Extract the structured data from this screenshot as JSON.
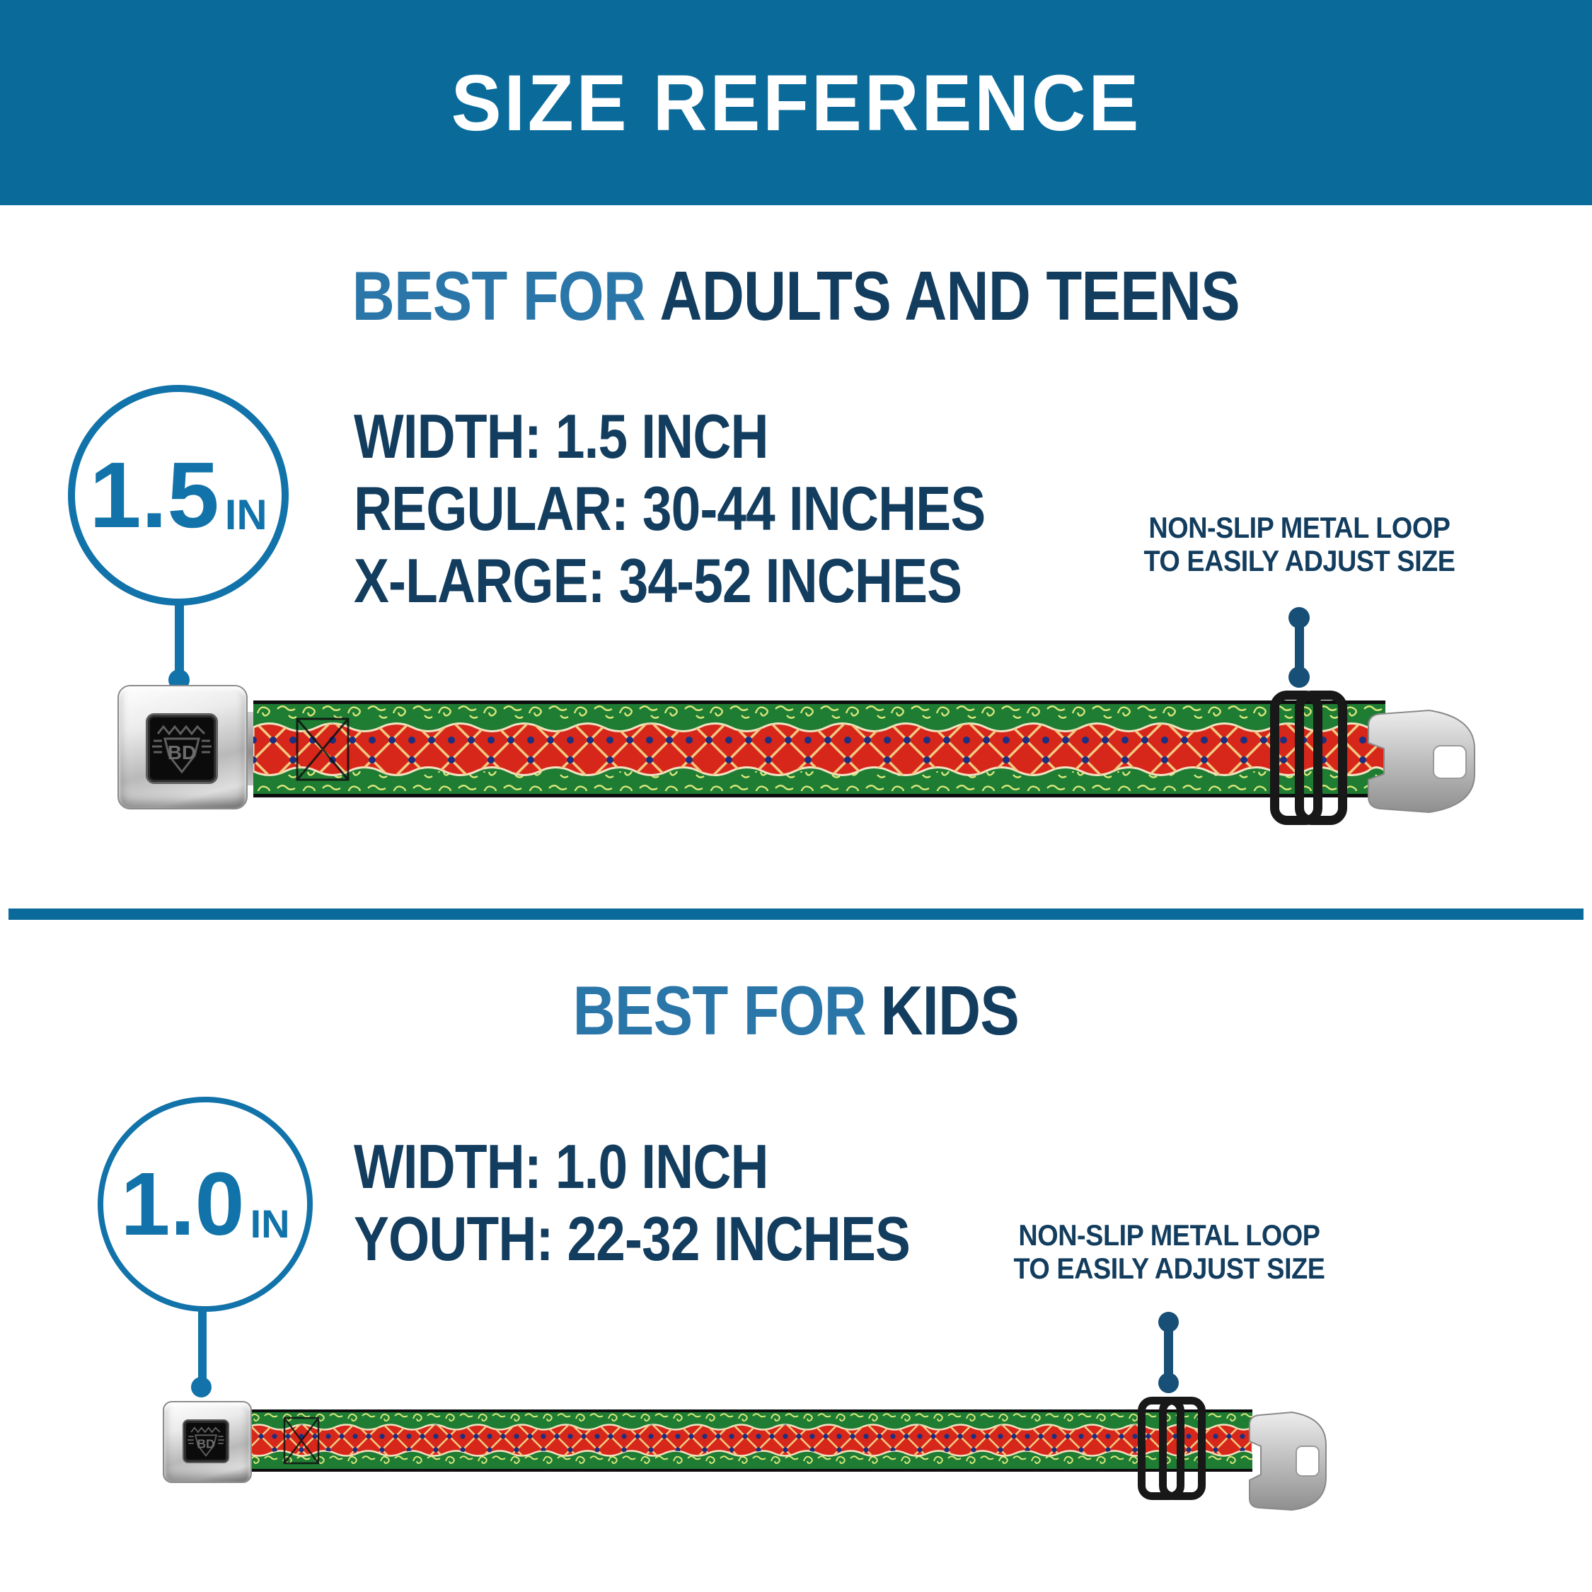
{
  "header": {
    "title": "SIZE REFERENCE"
  },
  "colors": {
    "banner": "#0a6b9b",
    "accent": "#2b76a9",
    "navy": "#133d5e",
    "badge": "#1173a9",
    "connector": "#174f77",
    "belt-green": "#1e7c33",
    "belt-red": "#d7271b",
    "lattice": "#f2ca80",
    "lattice-dot": "#1d2f7f",
    "filigree": "#d7e77a",
    "band-edge": "#f0e3c3"
  },
  "sections": [
    {
      "heading_accent": "BEST FOR",
      "heading_main": "ADULTS AND TEENS",
      "badge_value": "1.5",
      "badge_unit": "IN",
      "specs": [
        "WIDTH: 1.5 INCH",
        "REGULAR: 30-44 INCHES",
        "X-LARGE: 34-52 INCHES"
      ],
      "callout_line1": "NON-SLIP METAL LOOP",
      "callout_line2": "TO EASILY ADJUST SIZE",
      "buckle_logo": "BD"
    },
    {
      "heading_accent": "BEST FOR",
      "heading_main": "KIDS",
      "badge_value": "1.0",
      "badge_unit": "IN",
      "specs": [
        "WIDTH: 1.0 INCH",
        "YOUTH: 22-32 INCHES"
      ],
      "callout_line1": "NON-SLIP METAL LOOP",
      "callout_line2": "TO EASILY ADJUST SIZE",
      "buckle_logo": "BD"
    }
  ]
}
